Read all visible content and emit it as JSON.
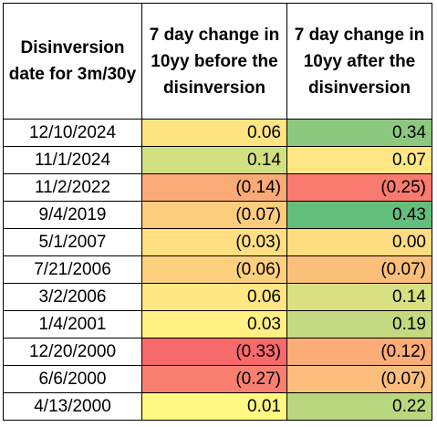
{
  "table": {
    "headers": [
      "Disinversion date for 3m/30y",
      "7 day change in 10yy before the disinversion",
      "7 day change in 10yy after the disinversion"
    ],
    "rows": [
      {
        "date": "12/10/2024",
        "before": "0.06",
        "after": "0.34"
      },
      {
        "date": "11/1/2024",
        "before": "0.14",
        "after": "0.07"
      },
      {
        "date": "11/2/2022",
        "before": "(0.14)",
        "after": "(0.25)"
      },
      {
        "date": "9/4/2019",
        "before": "(0.07)",
        "after": "0.43"
      },
      {
        "date": "5/1/2007",
        "before": "(0.03)",
        "after": "0.00"
      },
      {
        "date": "7/21/2006",
        "before": "(0.06)",
        "after": "(0.07)"
      },
      {
        "date": "3/2/2006",
        "before": "0.06",
        "after": "0.14"
      },
      {
        "date": "1/4/2001",
        "before": "0.03",
        "after": "0.19"
      },
      {
        "date": "12/20/2000",
        "before": "(0.33)",
        "after": "(0.12)"
      },
      {
        "date": "6/6/2000",
        "before": "(0.27)",
        "after": "(0.07)"
      },
      {
        "date": "4/13/2000",
        "before": "0.01",
        "after": "0.22"
      }
    ],
    "cell_colors": [
      {
        "before": "#fee582",
        "after": "#8cc97e"
      },
      {
        "before": "#d1e182",
        "after": "#ffe884"
      },
      {
        "before": "#fbaa77",
        "after": "#f97a6f"
      },
      {
        "before": "#fdcd7e",
        "after": "#63be7b"
      },
      {
        "before": "#ffdf82",
        "after": "#fedc80"
      },
      {
        "before": "#fdd07e",
        "after": "#fcbf7b"
      },
      {
        "before": "#fee683",
        "after": "#d9e082"
      },
      {
        "before": "#fff081",
        "after": "#c3da80"
      },
      {
        "before": "#f8696b",
        "after": "#fcac77"
      },
      {
        "before": "#f98070",
        "after": "#fdbe7c"
      },
      {
        "before": "#fff883",
        "after": "#b9d77f"
      }
    ]
  }
}
